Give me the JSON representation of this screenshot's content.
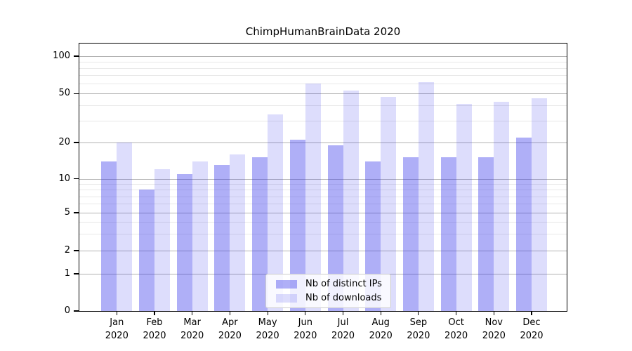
{
  "chart_data": {
    "type": "bar",
    "title": "ChimpHumanBrainData 2020",
    "year": "2020",
    "months": [
      "Jan",
      "Feb",
      "Mar",
      "Apr",
      "May",
      "Jun",
      "Jul",
      "Aug",
      "Sep",
      "Oct",
      "Nov",
      "Dec"
    ],
    "categories": [
      "Jan 2020",
      "Feb 2020",
      "Mar 2020",
      "Apr 2020",
      "May 2020",
      "Jun 2020",
      "Jul 2020",
      "Aug 2020",
      "Sep 2020",
      "Oct 2020",
      "Nov 2020",
      "Dec 2020"
    ],
    "series": [
      {
        "name": "Nb of distinct IPs",
        "color_hex": "#a6a6f1",
        "color_rgba": "rgba(45,45,235,0.38)",
        "values": [
          14,
          8,
          11,
          13,
          15,
          21,
          19,
          14,
          15,
          15,
          15,
          22
        ]
      },
      {
        "name": "Nb of downloads",
        "color_hex": "#dcdcf9",
        "color_rgba": "rgba(45,45,235,0.16)",
        "values": [
          20,
          12,
          14,
          16,
          34,
          60,
          53,
          47,
          62,
          41,
          43,
          46
        ]
      }
    ],
    "y_axis": {
      "scale": "symlog",
      "ticks": [
        100,
        50,
        20,
        10,
        5,
        2,
        1,
        0
      ],
      "minor_gridlines": [
        90,
        80,
        70,
        60,
        40,
        30,
        9,
        8,
        7,
        6,
        4,
        3
      ],
      "range": [
        0,
        115
      ]
    },
    "xlabel": "",
    "ylabel": "",
    "grid": true,
    "legend_position": "lower center",
    "y_scale_anchors": [
      [
        100,
        0.047
      ],
      [
        50,
        0.187
      ],
      [
        20,
        0.37
      ],
      [
        10,
        0.5055
      ],
      [
        5,
        0.6326
      ],
      [
        2,
        0.7737
      ],
      [
        1,
        0.8608
      ],
      [
        0,
        1.0
      ]
    ]
  },
  "colors": {
    "major_grid": "#b2b2b2",
    "minor_grid": "#e8e8e8",
    "spine": "#000000",
    "text": "#000000",
    "legend_border": "#cccccc"
  }
}
